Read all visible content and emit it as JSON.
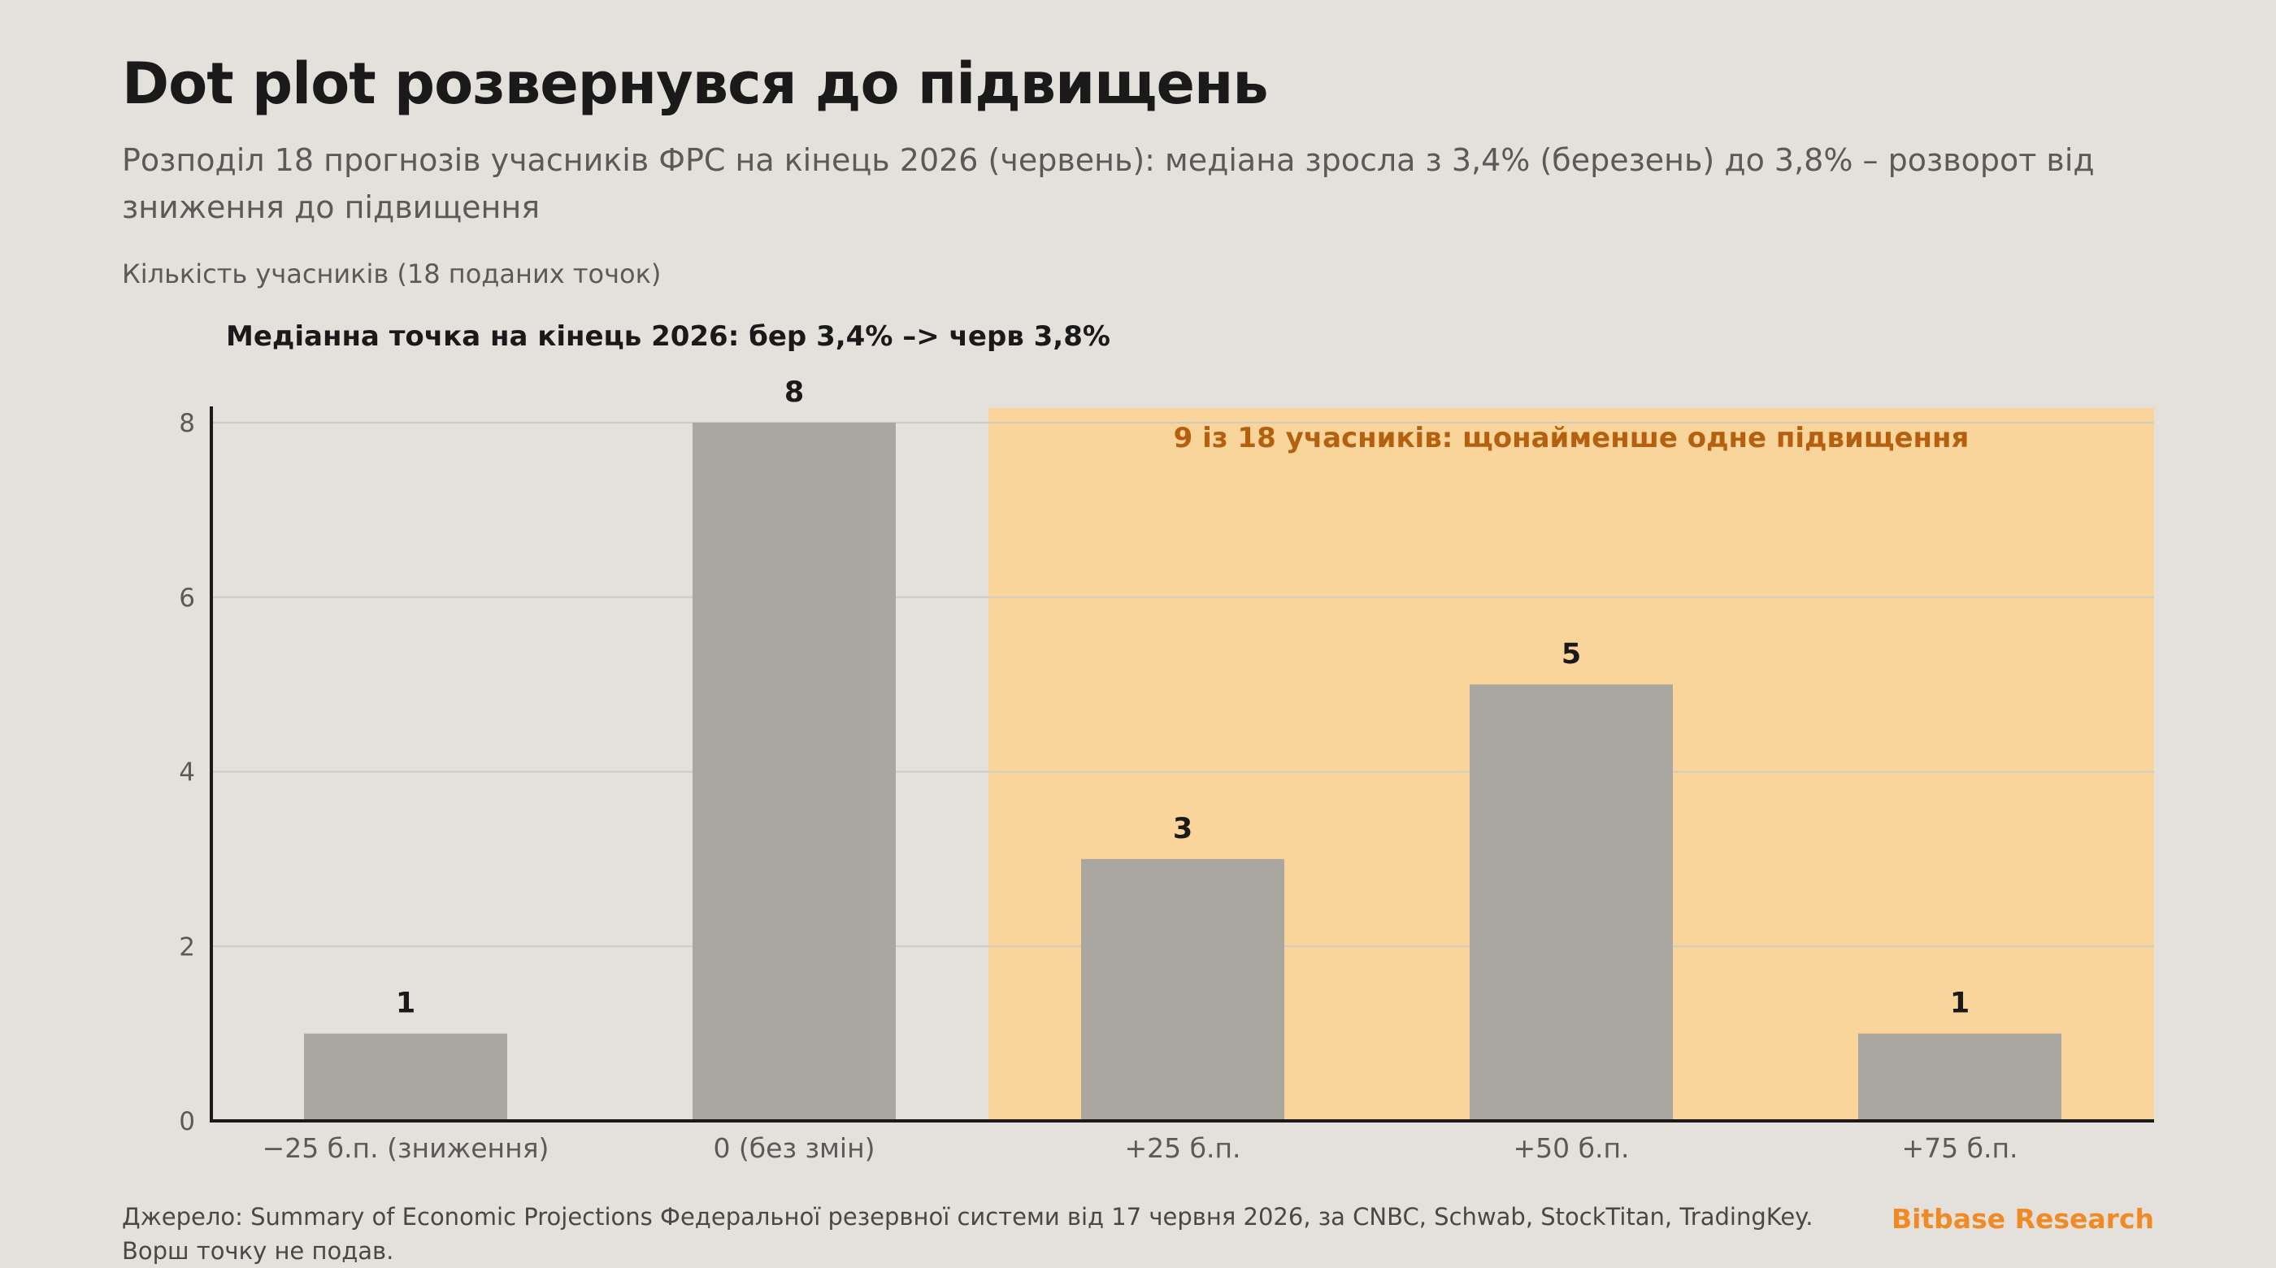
{
  "header": {
    "title": "Dot plot розвернувся до підвищень",
    "subtitle": "Розподіл 18 прогнозів учасників ФРС на кінець 2026 (червень): медіана зросла з 3,4% (березень) до 3,8% – розворот від зниження до підвищення"
  },
  "chart_data": {
    "type": "bar",
    "ylabel": "Кількість учасників (18 поданих точок)",
    "annotation": "Медіанна точка на кінець 2026: бер 3,4% –> черв 3,8%",
    "categories": [
      "−25 б.п. (зниження)",
      "0 (без змін)",
      "+25 б.п.",
      "+50 б.п.",
      "+75 б.п."
    ],
    "values": [
      1,
      8,
      3,
      5,
      1
    ],
    "ylim": [
      0,
      8
    ],
    "yticks": [
      0,
      2,
      4,
      6,
      8
    ],
    "grid": true,
    "highlight": {
      "from_category_index": 2,
      "to_category_index": 4,
      "label": "9 із 18 учасників: щонайменше одне підвищення",
      "color": "#f9d49b"
    },
    "bar_color": "#aaa6a0"
  },
  "footer": {
    "source": "Джерело: Summary of Economic Projections Федеральної резервної системи від 17 червня 2026, за CNBC, Schwab, StockTitan, TradingKey. Ворш точку не подав.",
    "brand": "Bitbase Research"
  },
  "colors": {
    "background": "#e4e0db",
    "accent": "#f08a24",
    "highlight_text": "#b4600e"
  }
}
